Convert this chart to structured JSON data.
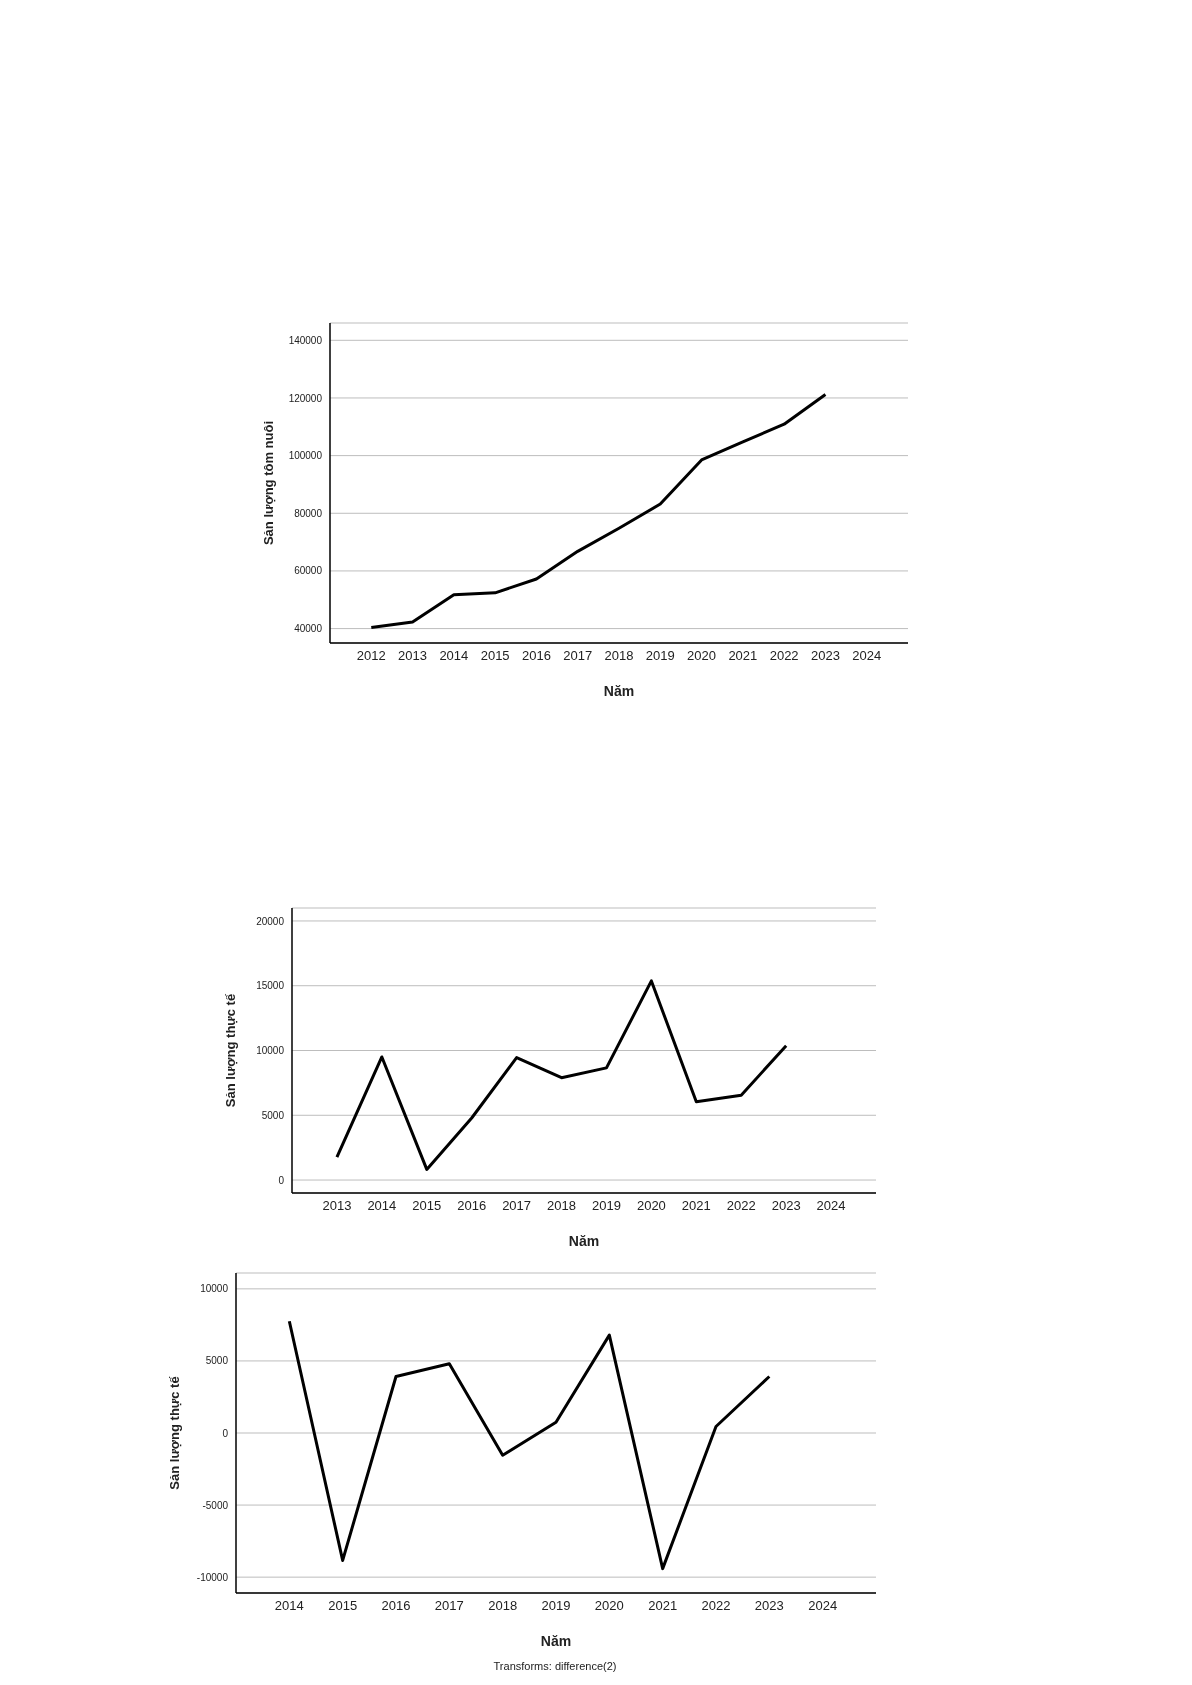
{
  "chart_data": [
    {
      "type": "line",
      "xlabel": "Năm",
      "ylabel": "Sản lượng tôm nuôi",
      "categories": [
        "2012",
        "2013",
        "2014",
        "2015",
        "2016",
        "2017",
        "2018",
        "2019",
        "2020",
        "2021",
        "2022",
        "2023",
        "2024"
      ],
      "values": [
        40400,
        42300,
        51700,
        52400,
        57200,
        66800,
        74800,
        83200,
        98500,
        104800,
        110900,
        121200,
        null
      ],
      "color": "#000000",
      "ylim": [
        35000,
        146000
      ],
      "yticks": [
        40000,
        60000,
        80000,
        100000,
        120000,
        140000
      ],
      "grid": "y",
      "marker": "none"
    },
    {
      "type": "line",
      "xlabel": "Năm",
      "ylabel": "Sản lượng thực tế",
      "categories": [
        "2013",
        "2014",
        "2015",
        "2016",
        "2017",
        "2018",
        "2019",
        "2020",
        "2021",
        "2022",
        "2023",
        "2024"
      ],
      "values": [
        1770,
        9500,
        820,
        4790,
        9450,
        7900,
        8660,
        15370,
        6040,
        6550,
        10370,
        null
      ],
      "color": "#000000",
      "ylim": [
        -1000,
        21000
      ],
      "yticks": [
        0,
        5000,
        10000,
        15000,
        20000
      ],
      "grid": "y",
      "marker": "none"
    },
    {
      "type": "line",
      "xlabel": "Năm",
      "ylabel": "Sản lượng thực tế",
      "categories": [
        "2014",
        "2015",
        "2016",
        "2017",
        "2018",
        "2019",
        "2020",
        "2021",
        "2022",
        "2023",
        "2024"
      ],
      "values": [
        7750,
        -8840,
        3920,
        4800,
        -1540,
        750,
        6790,
        -9410,
        450,
        3920,
        null
      ],
      "color": "#000000",
      "ylim": [
        -11100,
        11100
      ],
      "yticks": [
        -10000,
        -5000,
        0,
        5000,
        10000
      ],
      "grid": "y",
      "marker": "none",
      "annotations": [
        "Transforms: difference(2)"
      ]
    }
  ]
}
